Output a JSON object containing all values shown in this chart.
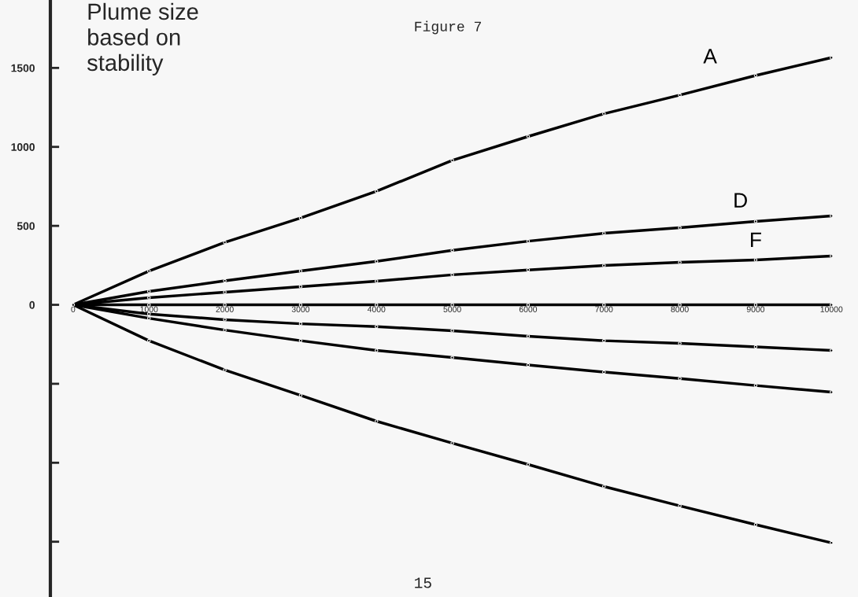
{
  "chart_data": {
    "type": "line",
    "title": "Plume size\nbased on\nstability",
    "annotations": [
      "Figure 7",
      "15"
    ],
    "x": [
      0,
      1000,
      2000,
      3000,
      4000,
      5000,
      6000,
      7000,
      8000,
      9000,
      10000
    ],
    "series": [
      {
        "name": "A",
        "color": "#000000",
        "values": [
          0,
          214,
          395,
          550,
          719,
          915,
          1066,
          1210,
          1328,
          1452,
          1565
        ]
      },
      {
        "name": "D",
        "color": "#000000",
        "values": [
          0,
          85,
          152,
          214,
          275,
          345,
          403,
          453,
          488,
          528,
          563
        ]
      },
      {
        "name": "F",
        "color": "#000000",
        "values": [
          0,
          45,
          80,
          115,
          150,
          190,
          221,
          249,
          269,
          284,
          309
        ]
      },
      {
        "color": "#000000",
        "values": [
          0,
          0,
          0,
          0,
          0,
          0,
          0,
          0,
          0,
          0,
          0
        ]
      },
      {
        "color": "#000000",
        "values": [
          0,
          -58,
          -94,
          -120,
          -138,
          -164,
          -199,
          -227,
          -244,
          -266,
          -289
        ]
      },
      {
        "color": "#000000",
        "values": [
          0,
          -85,
          -160,
          -227,
          -289,
          -334,
          -381,
          -426,
          -467,
          -511,
          -553
        ]
      },
      {
        "color": "#000000",
        "values": [
          0,
          -227,
          -413,
          -573,
          -737,
          -876,
          -1011,
          -1150,
          -1273,
          -1392,
          -1507
        ]
      }
    ],
    "xlim": [
      -300,
      10350
    ],
    "ylim": [
      -1850,
      1930
    ],
    "xticks": [
      0,
      1000,
      2000,
      3000,
      4000,
      5000,
      6000,
      7000,
      8000,
      9000,
      10000
    ],
    "yticks": [
      {
        "value": -1500,
        "label": null
      },
      {
        "value": -1000,
        "label": null
      },
      {
        "value": -500,
        "label": null
      },
      0,
      500,
      1000,
      1500
    ],
    "grid": false,
    "legend": false,
    "marker": "circle",
    "line_style": "solid"
  }
}
